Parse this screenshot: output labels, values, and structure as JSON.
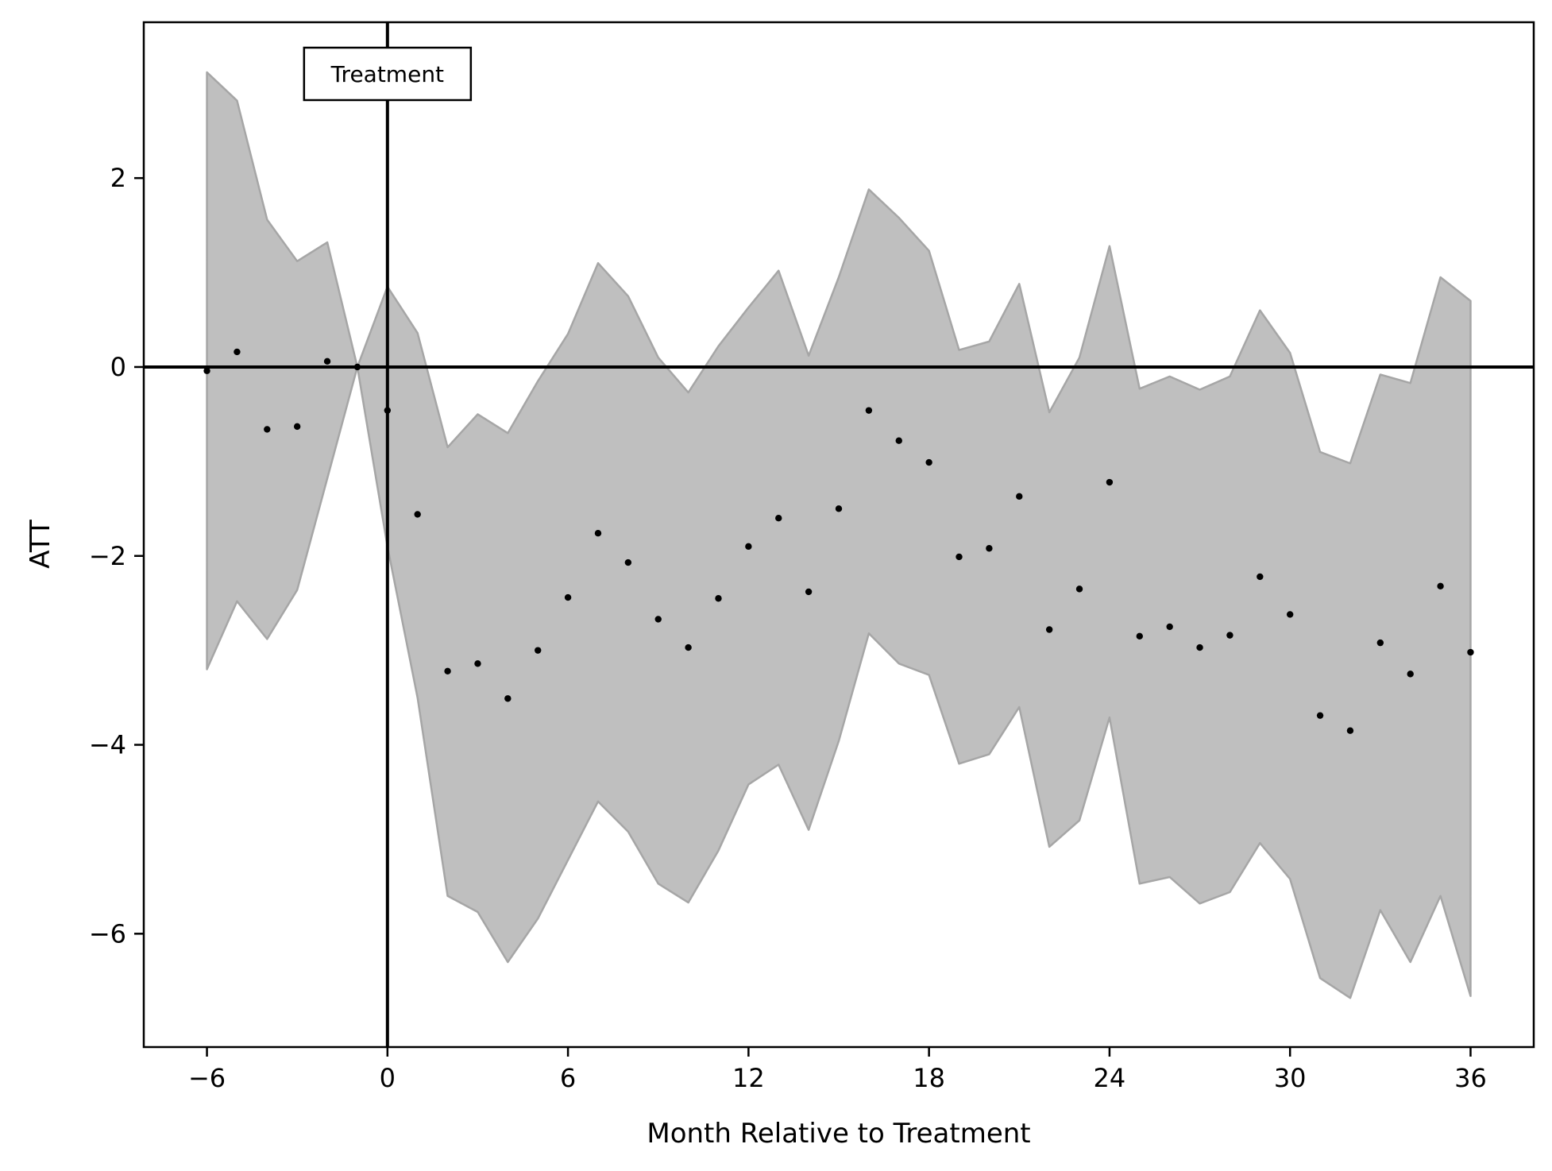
{
  "chart_data": {
    "type": "scatter",
    "title": "",
    "xlabel": "Month Relative to Treatment",
    "ylabel": "ATT",
    "xlim": [
      -8.1,
      38.1
    ],
    "ylim": [
      -7.2,
      3.65
    ],
    "xticks": [
      -6,
      0,
      6,
      12,
      18,
      24,
      30,
      36
    ],
    "yticks": [
      -6,
      -4,
      -2,
      0,
      2
    ],
    "grid": false,
    "legend": "none",
    "x": [
      -6,
      -5,
      -4,
      -3,
      -2,
      -1,
      0,
      1,
      2,
      3,
      4,
      5,
      6,
      7,
      8,
      9,
      10,
      11,
      12,
      13,
      14,
      15,
      16,
      17,
      18,
      19,
      20,
      21,
      22,
      23,
      24,
      25,
      26,
      27,
      28,
      29,
      30,
      31,
      32,
      33,
      34,
      35,
      36
    ],
    "y": [
      -0.04,
      0.16,
      -0.66,
      -0.63,
      0.06,
      0.0,
      -0.46,
      -1.56,
      -3.22,
      -3.14,
      -3.51,
      -3.0,
      -2.44,
      -1.76,
      -2.07,
      -2.67,
      -2.97,
      -2.45,
      -1.9,
      -1.6,
      -2.38,
      -1.5,
      -0.46,
      -0.78,
      -1.01,
      -2.01,
      -1.92,
      -1.37,
      -2.78,
      -2.35,
      -1.22,
      -2.85,
      -2.75,
      -2.97,
      -2.84,
      -2.22,
      -2.62,
      -3.69,
      -3.85,
      -2.92,
      -3.25,
      -2.32,
      -3.02
    ],
    "ci_upper": [
      3.12,
      2.82,
      1.56,
      1.12,
      1.32,
      0.0,
      0.85,
      0.36,
      -0.85,
      -0.5,
      -0.7,
      -0.15,
      0.35,
      1.1,
      0.75,
      0.1,
      -0.27,
      0.22,
      0.63,
      1.02,
      0.12,
      0.95,
      1.88,
      1.58,
      1.23,
      0.18,
      0.27,
      0.88,
      -0.48,
      0.1,
      1.28,
      -0.23,
      -0.1,
      -0.24,
      -0.1,
      0.6,
      0.15,
      -0.9,
      -1.02,
      -0.08,
      -0.17,
      0.95,
      0.7
    ],
    "ci_lower": [
      -3.2,
      -2.48,
      -2.88,
      -2.36,
      -1.18,
      0.0,
      -1.9,
      -3.5,
      -5.6,
      -5.77,
      -6.3,
      -5.84,
      -5.22,
      -4.6,
      -4.92,
      -5.47,
      -5.67,
      -5.12,
      -4.42,
      -4.21,
      -4.9,
      -3.96,
      -2.82,
      -3.14,
      -3.26,
      -4.2,
      -4.1,
      -3.6,
      -5.08,
      -4.8,
      -3.71,
      -5.47,
      -5.4,
      -5.68,
      -5.56,
      -5.04,
      -5.42,
      -6.47,
      -6.68,
      -5.75,
      -6.3,
      -5.6,
      -6.66
    ],
    "reference_lines": {
      "horizontal_y": 0,
      "vertical_x": 0
    },
    "annotations": [
      {
        "text": "Treatment",
        "x": 0
      }
    ],
    "colors": {
      "band": "#bfbfbf",
      "band_edge": "#a6a6a6",
      "points": "#000000",
      "lines": "#000000"
    }
  }
}
